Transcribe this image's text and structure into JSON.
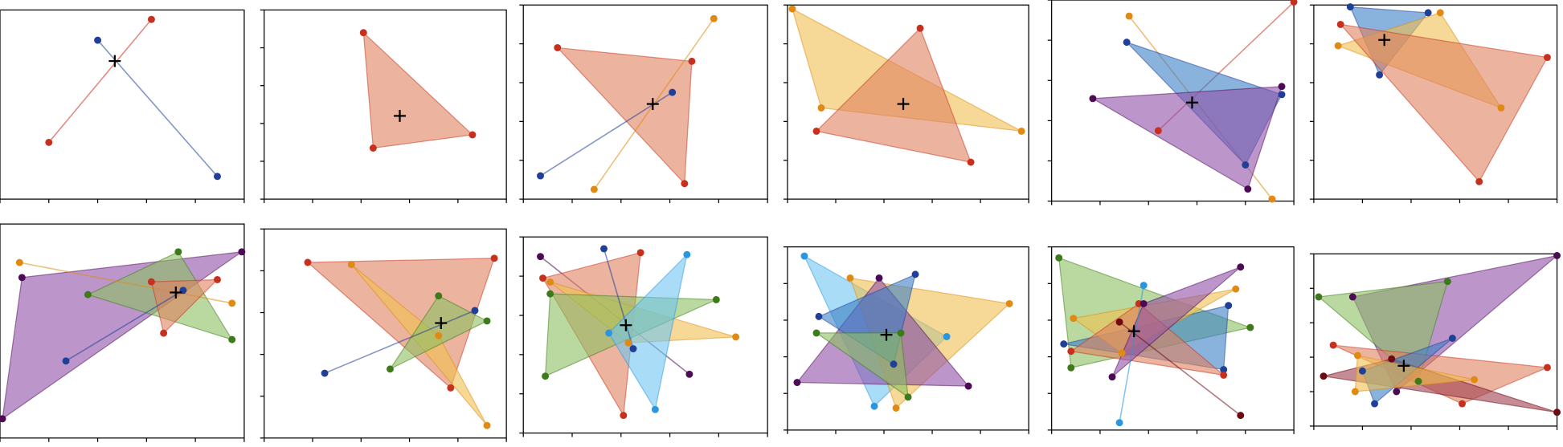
{
  "chart_data": [
    {
      "type": "polygon",
      "xlim": [
        0,
        1
      ],
      "ylim": [
        0,
        1
      ],
      "xticks": [
        0,
        0.2,
        0.4,
        0.6,
        0.8,
        1
      ],
      "yticks": [
        0,
        0.2,
        0.4,
        0.6,
        0.8,
        1
      ],
      "centroid": [
        0.47,
        0.73
      ],
      "shapes": [
        {
          "color": "#c8301e",
          "points": [
            [
              0.2,
              0.3
            ],
            [
              0.62,
              0.95
            ]
          ]
        },
        {
          "color": "#1f3f99",
          "points": [
            [
              0.4,
              0.84
            ],
            [
              0.89,
              0.12
            ]
          ]
        }
      ]
    },
    {
      "type": "polygon",
      "xlim": [
        0,
        1
      ],
      "ylim": [
        0,
        1
      ],
      "xticks": [
        0,
        0.2,
        0.4,
        0.6,
        0.8,
        1
      ],
      "yticks": [
        0,
        0.2,
        0.4,
        0.6,
        0.8,
        1
      ],
      "centroid": [
        0.56,
        0.44
      ],
      "shapes": [
        {
          "color": "#c8301e",
          "fill": "#e0805e",
          "points": [
            [
              0.41,
              0.88
            ],
            [
              0.86,
              0.34
            ],
            [
              0.45,
              0.27
            ]
          ]
        }
      ]
    },
    {
      "type": "polygon",
      "xlim": [
        0,
        1
      ],
      "ylim": [
        0,
        1
      ],
      "xticks": [
        0,
        0.2,
        0.4,
        0.6,
        0.8,
        1
      ],
      "yticks": [
        0,
        0.2,
        0.4,
        0.6,
        0.8,
        1
      ],
      "centroid": [
        0.53,
        0.49
      ],
      "shapes": [
        {
          "color": "#c8301e",
          "fill": "#e0805e",
          "points": [
            [
              0.14,
              0.78
            ],
            [
              0.69,
              0.71
            ],
            [
              0.66,
              0.08
            ]
          ]
        },
        {
          "color": "#1f3f99",
          "points": [
            [
              0.07,
              0.12
            ],
            [
              0.61,
              0.55
            ]
          ]
        },
        {
          "color": "#e08a14",
          "points": [
            [
              0.29,
              0.05
            ],
            [
              0.78,
              0.93
            ]
          ]
        }
      ]
    },
    {
      "type": "polygon",
      "xlim": [
        0,
        1
      ],
      "ylim": [
        0,
        1
      ],
      "xticks": [
        0,
        0.2,
        0.4,
        0.6,
        0.8,
        1
      ],
      "yticks": [
        0,
        0.2,
        0.4,
        0.6,
        0.8,
        1
      ],
      "centroid": [
        0.48,
        0.49
      ],
      "shapes": [
        {
          "color": "#e08a14",
          "fill": "#f0c050",
          "points": [
            [
              0.02,
              0.98
            ],
            [
              0.97,
              0.35
            ],
            [
              0.14,
              0.47
            ]
          ]
        },
        {
          "color": "#c8301e",
          "fill": "#e0805e",
          "points": [
            [
              0.55,
              0.88
            ],
            [
              0.76,
              0.19
            ],
            [
              0.12,
              0.35
            ]
          ]
        }
      ]
    },
    {
      "type": "polygon",
      "xlim": [
        0,
        1
      ],
      "ylim": [
        0,
        1
      ],
      "xticks": [
        0,
        0.2,
        0.4,
        0.6,
        0.8,
        1
      ],
      "yticks": [
        0,
        0.2,
        0.4,
        0.6,
        0.8,
        1
      ],
      "centroid": [
        0.58,
        0.49
      ],
      "shapes": [
        {
          "color": "#e08a14",
          "points": [
            [
              0.32,
              0.92
            ],
            [
              0.91,
              0.01
            ]
          ]
        },
        {
          "color": "#c8301e",
          "points": [
            [
              0.44,
              0.35
            ],
            [
              1,
              0.99
            ]
          ]
        },
        {
          "color": "#1f3f99",
          "fill": "#3b7fc4",
          "points": [
            [
              0.31,
              0.79
            ],
            [
              0.95,
              0.53
            ],
            [
              0.8,
              0.18
            ]
          ]
        },
        {
          "color": "#4d0a55",
          "fill": "#9050a8",
          "points": [
            [
              0.17,
              0.51
            ],
            [
              0.95,
              0.57
            ],
            [
              0.81,
              0.06
            ]
          ]
        }
      ]
    },
    {
      "type": "polygon",
      "xlim": [
        0,
        1
      ],
      "ylim": [
        0,
        1
      ],
      "xticks": [
        0,
        0.2,
        0.4,
        0.6,
        0.8,
        1
      ],
      "yticks": [
        0,
        0.2,
        0.4,
        0.6,
        0.8,
        1
      ],
      "centroid": [
        0.29,
        0.82
      ],
      "shapes": [
        {
          "color": "#1f3f99",
          "fill": "#3b7fc4",
          "points": [
            [
              0.15,
              0.99
            ],
            [
              0.47,
              0.96
            ],
            [
              0.27,
              0.64
            ]
          ]
        },
        {
          "color": "#e08a14",
          "fill": "#f0c050",
          "points": [
            [
              0.1,
              0.79
            ],
            [
              0.52,
              0.96
            ],
            [
              0.77,
              0.47
            ]
          ]
        },
        {
          "color": "#c8301e",
          "fill": "#e0805e",
          "points": [
            [
              0.11,
              0.9
            ],
            [
              0.96,
              0.73
            ],
            [
              0.68,
              0.09
            ]
          ]
        }
      ]
    },
    {
      "type": "polygon",
      "xlim": [
        0,
        1
      ],
      "ylim": [
        0,
        1
      ],
      "xticks": [
        0,
        0.2,
        0.4,
        0.6,
        0.8,
        1
      ],
      "yticks": [
        0,
        0.2,
        0.4,
        0.6,
        0.8,
        1
      ],
      "centroid": [
        0.72,
        0.68
      ],
      "shapes": [
        {
          "color": "#4d0a55",
          "fill": "#9050a8",
          "points": [
            [
              0.09,
              0.75
            ],
            [
              0.99,
              0.87
            ],
            [
              0.01,
              0.09
            ]
          ]
        },
        {
          "color": "#3d7a1a",
          "fill": "#8cc060",
          "points": [
            [
              0.36,
              0.67
            ],
            [
              0.73,
              0.87
            ],
            [
              0.95,
              0.46
            ]
          ]
        },
        {
          "color": "#e08a14",
          "points": [
            [
              0.08,
              0.82
            ],
            [
              0.95,
              0.63
            ]
          ]
        },
        {
          "color": "#c8301e",
          "fill": "#e0805e",
          "points": [
            [
              0.62,
              0.73
            ],
            [
              0.89,
              0.74
            ],
            [
              0.67,
              0.49
            ]
          ]
        },
        {
          "color": "#1f3f99",
          "points": [
            [
              0.27,
              0.36
            ],
            [
              0.75,
              0.69
            ]
          ]
        }
      ]
    },
    {
      "type": "polygon",
      "xlim": [
        0,
        1
      ],
      "ylim": [
        0,
        1
      ],
      "xticks": [
        0,
        0.2,
        0.4,
        0.6,
        0.8,
        1
      ],
      "yticks": [
        0,
        0.2,
        0.4,
        0.6,
        0.8,
        1
      ],
      "centroid": [
        0.73,
        0.55
      ],
      "shapes": [
        {
          "color": "#c8301e",
          "fill": "#e0805e",
          "points": [
            [
              0.18,
              0.84
            ],
            [
              0.95,
              0.86
            ],
            [
              0.77,
              0.24
            ]
          ]
        },
        {
          "color": "#e08a14",
          "fill": "#f0c050",
          "points": [
            [
              0.36,
              0.83
            ],
            [
              0.72,
              0.49
            ],
            [
              0.92,
              0.06
            ]
          ]
        },
        {
          "color": "#3d7a1a",
          "fill": "#8cc060",
          "points": [
            [
              0.72,
              0.68
            ],
            [
              0.92,
              0.56
            ],
            [
              0.52,
              0.33
            ]
          ]
        },
        {
          "color": "#1f3f99",
          "points": [
            [
              0.25,
              0.31
            ],
            [
              0.87,
              0.61
            ]
          ]
        }
      ]
    },
    {
      "type": "polygon",
      "xlim": [
        0,
        1
      ],
      "ylim": [
        0,
        1
      ],
      "xticks": [
        0,
        0.2,
        0.4,
        0.6,
        0.8,
        1
      ],
      "yticks": [
        0,
        0.2,
        0.4,
        0.6,
        0.8,
        1
      ],
      "centroid": [
        0.42,
        0.55
      ],
      "shapes": [
        {
          "color": "#4d0a55",
          "points": [
            [
              0.07,
              0.9
            ],
            [
              0.68,
              0.3
            ]
          ]
        },
        {
          "color": "#c8301e",
          "fill": "#e0805e",
          "points": [
            [
              0.08,
              0.79
            ],
            [
              0.48,
              0.92
            ],
            [
              0.41,
              0.09
            ]
          ]
        },
        {
          "color": "#e08a14",
          "fill": "#f0c050",
          "points": [
            [
              0.11,
              0.77
            ],
            [
              0.87,
              0.49
            ],
            [
              0.43,
              0.46
            ]
          ]
        },
        {
          "color": "#3d7a1a",
          "fill": "#8cc060",
          "points": [
            [
              0.11,
              0.71
            ],
            [
              0.79,
              0.68
            ],
            [
              0.09,
              0.29
            ]
          ]
        },
        {
          "color": "#2a96e0",
          "fill": "#70c4f0",
          "points": [
            [
              0.35,
              0.51
            ],
            [
              0.67,
              0.91
            ],
            [
              0.54,
              0.12
            ]
          ]
        },
        {
          "color": "#1f3f99",
          "points": [
            [
              0.33,
              0.94
            ],
            [
              0.45,
              0.43
            ]
          ]
        }
      ]
    },
    {
      "type": "polygon",
      "xlim": [
        0,
        1
      ],
      "ylim": [
        0,
        1
      ],
      "xticks": [
        0,
        0.2,
        0.4,
        0.6,
        0.8,
        1
      ],
      "yticks": [
        0,
        0.2,
        0.4,
        0.6,
        0.8,
        1
      ],
      "centroid": [
        0.41,
        0.52
      ],
      "shapes": [
        {
          "color": "#2a96e0",
          "fill": "#70c4f0",
          "points": [
            [
              0.07,
              0.95
            ],
            [
              0.66,
              0.51
            ],
            [
              0.36,
              0.13
            ]
          ]
        },
        {
          "color": "#e08a14",
          "fill": "#f0c050",
          "points": [
            [
              0.26,
              0.83
            ],
            [
              0.92,
              0.69
            ],
            [
              0.45,
              0.12
            ]
          ]
        },
        {
          "color": "#4d0a55",
          "fill": "#9050a8",
          "points": [
            [
              0.38,
              0.83
            ],
            [
              0.75,
              0.24
            ],
            [
              0.04,
              0.26
            ]
          ]
        },
        {
          "color": "#1f3f99",
          "fill": "#3b7fc4",
          "points": [
            [
              0.13,
              0.62
            ],
            [
              0.53,
              0.85
            ],
            [
              0.44,
              0.36
            ]
          ]
        },
        {
          "color": "#3d7a1a",
          "fill": "#8cc060",
          "points": [
            [
              0.12,
              0.53
            ],
            [
              0.47,
              0.53
            ],
            [
              0.5,
              0.18
            ]
          ]
        }
      ]
    },
    {
      "type": "polygon",
      "xlim": [
        0,
        1
      ],
      "ylim": [
        0,
        1
      ],
      "xticks": [
        0,
        0.2,
        0.4,
        0.6,
        0.8,
        1
      ],
      "yticks": [
        0,
        0.2,
        0.4,
        0.6,
        0.8,
        1
      ],
      "centroid": [
        0.34,
        0.54
      ],
      "shapes": [
        {
          "color": "#3d7a1a",
          "fill": "#8cc060",
          "points": [
            [
              0.03,
              0.94
            ],
            [
              0.82,
              0.56
            ],
            [
              0.08,
              0.34
            ]
          ]
        },
        {
          "color": "#1f3f99",
          "fill": "#3b7fc4",
          "points": [
            [
              0.05,
              0.47
            ],
            [
              0.73,
              0.68
            ],
            [
              0.71,
              0.33
            ]
          ]
        },
        {
          "color": "#e08a14",
          "fill": "#f0c050",
          "points": [
            [
              0.09,
              0.61
            ],
            [
              0.76,
              0.77
            ],
            [
              0.29,
              0.42
            ]
          ]
        },
        {
          "color": "#c8301e",
          "fill": "#e0805e",
          "points": [
            [
              0.08,
              0.43
            ],
            [
              0.36,
              0.69
            ],
            [
              0.71,
              0.3
            ]
          ]
        },
        {
          "color": "#4d0a55",
          "fill": "#9050a8",
          "points": [
            [
              0.25,
              0.29
            ],
            [
              0.78,
              0.89
            ],
            [
              0.38,
              0.69
            ]
          ]
        },
        {
          "color": "#2a96e0",
          "points": [
            [
              0.38,
              0.79
            ],
            [
              0.28,
              0.04
            ]
          ]
        },
        {
          "color": "#6e0a14",
          "points": [
            [
              0.28,
              0.59
            ],
            [
              0.78,
              0.08
            ]
          ]
        }
      ]
    },
    {
      "type": "polygon",
      "xlim": [
        0,
        1
      ],
      "ylim": [
        0,
        1
      ],
      "xticks": [
        0,
        0.2,
        0.4,
        0.6,
        0.8,
        1
      ],
      "yticks": [
        0,
        0.2,
        0.4,
        0.6,
        0.8,
        1
      ],
      "centroid": [
        0.37,
        0.35
      ],
      "shapes": [
        {
          "color": "#4d0a55",
          "fill": "#9050a8",
          "points": [
            [
              0.16,
              0.75
            ],
            [
              1,
              0.99
            ],
            [
              0.34,
              0.2
            ]
          ]
        },
        {
          "color": "#3d7a1a",
          "fill": "#8cc060",
          "points": [
            [
              0.02,
              0.75
            ],
            [
              0.55,
              0.84
            ],
            [
              0.43,
              0.26
            ]
          ]
        },
        {
          "color": "#c8301e",
          "fill": "#e0805e",
          "points": [
            [
              0.08,
              0.47
            ],
            [
              0.96,
              0.34
            ],
            [
              0.61,
              0.13
            ]
          ]
        },
        {
          "color": "#6e0a14",
          "fill": "#a04050",
          "points": [
            [
              0.04,
              0.29
            ],
            [
              0.32,
              0.39
            ],
            [
              1,
              0.08
            ]
          ]
        },
        {
          "color": "#1f3f99",
          "fill": "#3b7fc4",
          "points": [
            [
              0.2,
              0.32
            ],
            [
              0.57,
              0.51
            ],
            [
              0.25,
              0.13
            ]
          ]
        },
        {
          "color": "#e08a14",
          "fill": "#f0c050",
          "points": [
            [
              0.18,
              0.41
            ],
            [
              0.66,
              0.27
            ],
            [
              0.17,
              0.2
            ]
          ]
        }
      ]
    }
  ]
}
